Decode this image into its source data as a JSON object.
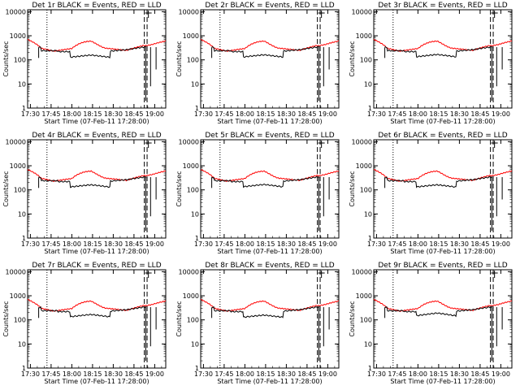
{
  "figure": {
    "colors": {
      "events": "#000000",
      "lld": "#ff0000",
      "axes": "#000000",
      "background": "#ffffff"
    }
  },
  "chart_data": [
    {
      "type": "line",
      "title": "Det 1r BLACK = Events, RED = LLD",
      "ylabel": "Counts/sec",
      "xlabel": "Start Time (07-Feb-11 17:28:00)",
      "x_ticks": [
        "17:30",
        "17:45",
        "18:00",
        "18:15",
        "18:30",
        "18:45",
        "19:00"
      ],
      "y_ticks": [
        "1",
        "10",
        "100",
        "1000",
        "10000"
      ],
      "xlim_min": [
        0,
        100
      ],
      "ylim": [
        1,
        12000
      ],
      "yscale": "log",
      "markers_min": [
        14,
        84.5,
        86.5
      ],
      "event_dip_depth": 0.55
    },
    {
      "type": "line",
      "title": "Det 2r BLACK = Events, RED = LLD",
      "ylabel": "Counts/sec",
      "xlabel": "Start Time (07-Feb-11 17:28:00)",
      "x_ticks": [
        "17:30",
        "17:45",
        "18:00",
        "18:15",
        "18:30",
        "18:45",
        "19:00"
      ],
      "y_ticks": [
        "1",
        "10",
        "100",
        "1000",
        "10000"
      ],
      "xlim_min": [
        0,
        100
      ],
      "ylim": [
        1,
        12000
      ],
      "yscale": "log",
      "markers_min": [
        14,
        84.5,
        86.5
      ],
      "event_dip_depth": 0.5
    },
    {
      "type": "line",
      "title": "Det 3r BLACK = Events, RED = LLD",
      "ylabel": "Counts/sec",
      "xlabel": "Start Time (07-Feb-11 17:28:00)",
      "x_ticks": [
        "17:30",
        "17:45",
        "18:00",
        "18:15",
        "18:30",
        "18:45",
        "19:00"
      ],
      "y_ticks": [
        "1",
        "10",
        "100",
        "1000",
        "10000"
      ],
      "xlim_min": [
        0,
        100
      ],
      "ylim": [
        1,
        12000
      ],
      "yscale": "log",
      "markers_min": [
        14,
        84.5,
        86.5
      ],
      "event_dip_depth": 0.45
    },
    {
      "type": "line",
      "title": "Det 4r BLACK = Events, RED = LLD",
      "ylabel": "Counts/sec",
      "xlabel": "Start Time (07-Feb-11 17:28:00)",
      "x_ticks": [
        "17:30",
        "17:45",
        "18:00",
        "18:15",
        "18:30",
        "18:45",
        "19:00"
      ],
      "y_ticks": [
        "1",
        "10",
        "100",
        "1000",
        "10000"
      ],
      "xlim_min": [
        0,
        100
      ],
      "ylim": [
        1,
        12000
      ],
      "yscale": "log",
      "markers_min": [
        14,
        84.5,
        86.5
      ],
      "event_dip_depth": 0.5
    },
    {
      "type": "line",
      "title": "Det 5r BLACK = Events, RED = LLD",
      "ylabel": "Counts/sec",
      "xlabel": "Start Time (07-Feb-11 17:28:00)",
      "x_ticks": [
        "17:30",
        "17:45",
        "18:00",
        "18:15",
        "18:30",
        "18:45",
        "19:00"
      ],
      "y_ticks": [
        "1",
        "10",
        "100",
        "1000",
        "10000"
      ],
      "xlim_min": [
        0,
        100
      ],
      "ylim": [
        1,
        12000
      ],
      "yscale": "log",
      "markers_min": [
        14,
        84.5,
        86.5
      ],
      "event_dip_depth": 0.45
    },
    {
      "type": "line",
      "title": "Det 6r BLACK = Events, RED = LLD",
      "ylabel": "Counts/sec",
      "xlabel": "Start Time (07-Feb-11 17:28:00)",
      "x_ticks": [
        "17:30",
        "17:45",
        "18:00",
        "18:15",
        "18:30",
        "18:45",
        "19:00"
      ],
      "y_ticks": [
        "1",
        "10",
        "100",
        "1000",
        "10000"
      ],
      "xlim_min": [
        0,
        100
      ],
      "ylim": [
        1,
        12000
      ],
      "yscale": "log",
      "markers_min": [
        14,
        84.5,
        86.5
      ],
      "event_dip_depth": 0.5
    },
    {
      "type": "line",
      "title": "Det 7r BLACK = Events, RED = LLD",
      "ylabel": "Counts/sec",
      "xlabel": "Start Time (07-Feb-11 17:28:00)",
      "x_ticks": [
        "17:30",
        "17:45",
        "18:00",
        "18:15",
        "18:30",
        "18:45",
        "19:00"
      ],
      "y_ticks": [
        "1",
        "10",
        "100",
        "1000",
        "10000"
      ],
      "xlim_min": [
        0,
        100
      ],
      "ylim": [
        1,
        12000
      ],
      "yscale": "log",
      "markers_min": [
        14,
        84.5,
        86.5
      ],
      "event_dip_depth": 0.45
    },
    {
      "type": "line",
      "title": "Det 8r BLACK = Events, RED = LLD",
      "ylabel": "Counts/sec",
      "xlabel": "Start Time (07-Feb-11 17:28:00)",
      "x_ticks": [
        "17:30",
        "17:45",
        "18:00",
        "18:15",
        "18:30",
        "18:45",
        "19:00"
      ],
      "y_ticks": [
        "1",
        "10",
        "100",
        "1000",
        "10000"
      ],
      "xlim_min": [
        0,
        100
      ],
      "ylim": [
        1,
        12000
      ],
      "yscale": "log",
      "markers_min": [
        14,
        84.5,
        86.5
      ],
      "event_dip_depth": 0.55
    },
    {
      "type": "line",
      "title": "Det 9r BLACK = Events, RED = LLD",
      "ylabel": "Counts/sec",
      "xlabel": "Start Time (07-Feb-11 17:28:00)",
      "x_ticks": [
        "17:30",
        "17:45",
        "18:00",
        "18:15",
        "18:30",
        "18:45",
        "19:00"
      ],
      "y_ticks": [
        "1",
        "10",
        "100",
        "1000",
        "10000"
      ],
      "xlim_min": [
        0,
        100
      ],
      "ylim": [
        1,
        12000
      ],
      "yscale": "log",
      "markers_min": [
        14,
        84.5,
        86.5
      ],
      "event_dip_depth": 0.2
    }
  ]
}
